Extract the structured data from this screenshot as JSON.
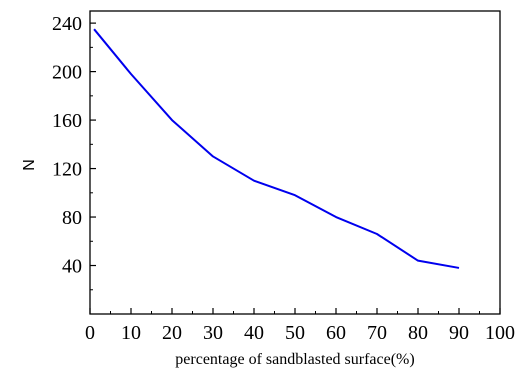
{
  "chart_data": {
    "type": "line",
    "title": "",
    "xlabel": "percentage of sandblasted surface(%)",
    "ylabel": "N",
    "xlim": [
      0,
      100
    ],
    "ylim": [
      0,
      250
    ],
    "x_ticks": [
      0,
      10,
      20,
      30,
      40,
      50,
      60,
      70,
      80,
      90,
      100
    ],
    "x_tick_labels": [
      "0",
      "10",
      "20",
      "30",
      "40",
      "50",
      "60",
      "70",
      "80",
      "90",
      "100"
    ],
    "y_ticks": [
      40,
      80,
      120,
      160,
      200,
      240
    ],
    "y_tick_labels": [
      "40",
      "80",
      "120",
      "160",
      "200",
      "240"
    ],
    "grid": false,
    "legend": "none",
    "series": [
      {
        "color": "#0000ee",
        "x": [
          1,
          10,
          20,
          30,
          40,
          50,
          60,
          70,
          80,
          90
        ],
        "y": [
          235,
          198,
          160,
          130,
          110,
          98,
          80,
          66,
          44,
          38
        ]
      }
    ]
  }
}
